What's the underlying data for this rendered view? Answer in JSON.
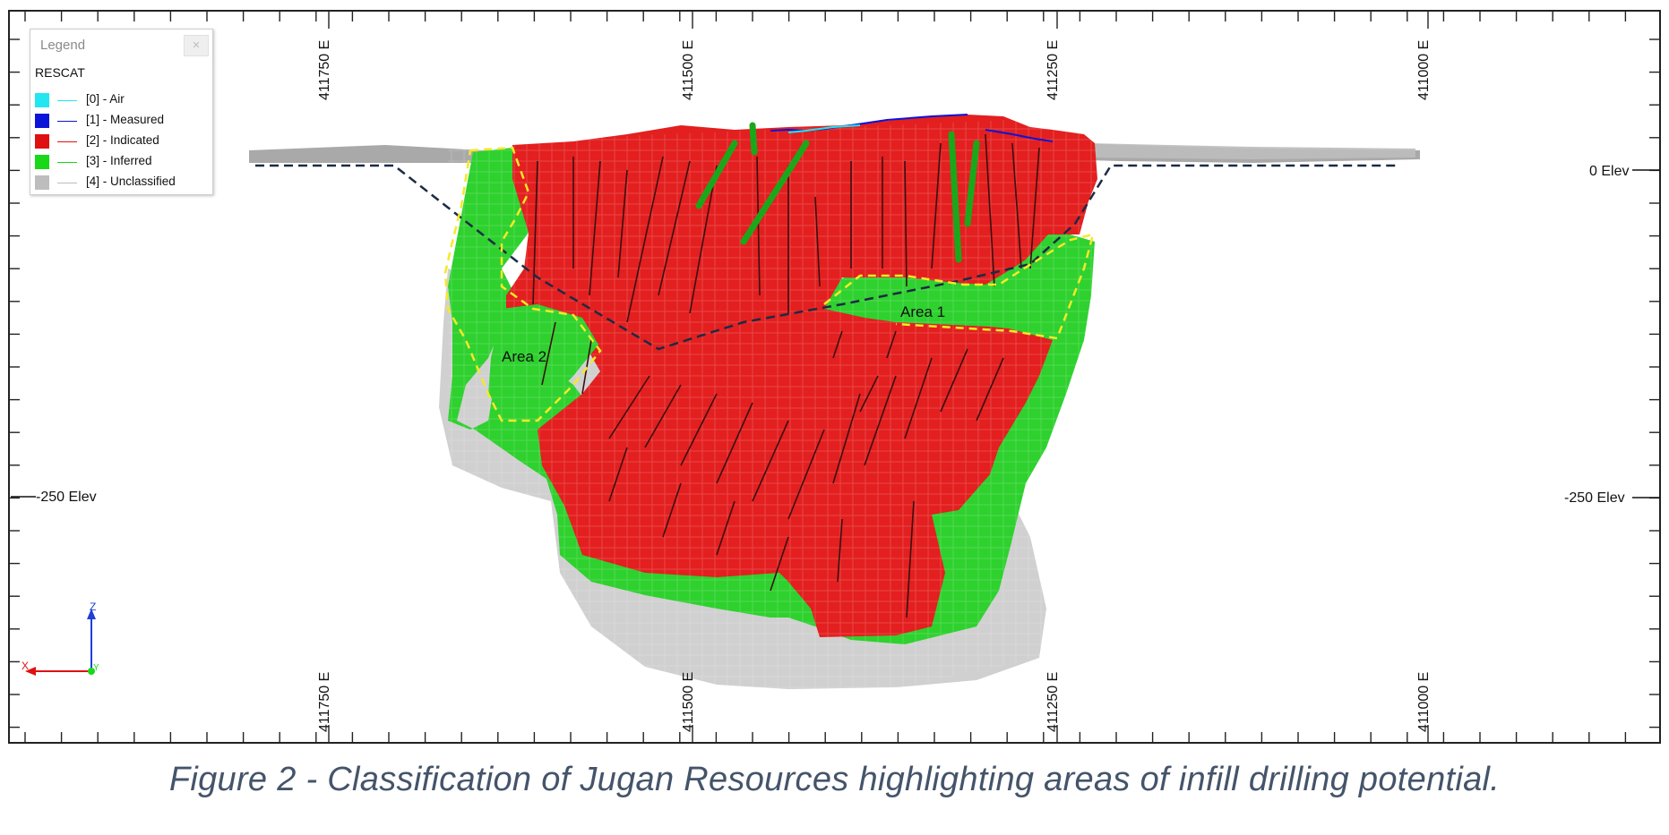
{
  "legend": {
    "title": "Legend",
    "field": "RESCAT",
    "items": [
      {
        "label": "[0] - Air",
        "color": "#22e6f0"
      },
      {
        "label": "[1] - Measured",
        "color": "#0a14d8"
      },
      {
        "label": "[2] - Indicated",
        "color": "#e01010"
      },
      {
        "label": "[3] - Inferred",
        "color": "#18d818"
      },
      {
        "label": "[4] - Unclassified",
        "color": "#bdbdbd"
      }
    ]
  },
  "axes": {
    "top_eastings": [
      "411750 E",
      "411500 E",
      "411250 E",
      "411000 E"
    ],
    "bottom_eastings": [
      "411750 E",
      "411500 E",
      "411250 E",
      "411000 E"
    ],
    "elev_left": [
      "-250 Elev"
    ],
    "elev_right": [
      "0 Elev",
      "-250 Elev"
    ]
  },
  "annotations": {
    "area1": "Area 1",
    "area2": "Area 2"
  },
  "triad": {
    "z": "Z",
    "x": "X",
    "y": "Y"
  },
  "caption": "Figure 2 - Classification of Jugan Resources highlighting areas of infill drilling potential."
}
